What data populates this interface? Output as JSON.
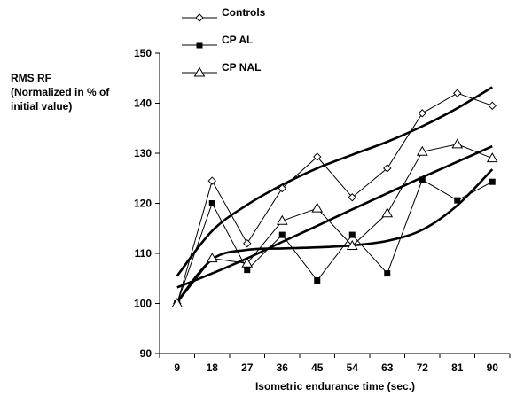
{
  "chart_data": {
    "type": "line",
    "xlabel": "Isometric endurance time (sec.)",
    "ylabel_lines": [
      "RMS RF",
      "(Normalized in % of",
      "initial value)"
    ],
    "categories": [
      "9",
      "18",
      "27",
      "36",
      "45",
      "54",
      "63",
      "72",
      "81",
      "90"
    ],
    "ylim": [
      90,
      150
    ],
    "yticks": [
      90,
      100,
      110,
      120,
      130,
      140,
      150
    ],
    "grid": false,
    "legend_position": "top",
    "series": [
      {
        "name": "Controls",
        "marker": "diamond",
        "values": [
          100,
          124.5,
          112,
          123,
          129.3,
          121.2,
          127,
          138,
          142,
          139.5
        ]
      },
      {
        "name": "CP AL",
        "marker": "square",
        "values": [
          100,
          120,
          106.7,
          113.7,
          104.6,
          113.7,
          106,
          124.7,
          120.6,
          124.3
        ]
      },
      {
        "name": "CP NAL",
        "marker": "triangle",
        "values": [
          100,
          109,
          108,
          116.5,
          119,
          111.5,
          118,
          130.3,
          131.8,
          129
        ]
      }
    ],
    "trendlines": [
      {
        "series": "Controls",
        "values": [
          105.5,
          114.5,
          119.7,
          123.7,
          127,
          129.7,
          132.3,
          135.4,
          139,
          143.2
        ]
      },
      {
        "series": "CP AL",
        "values": [
          100.3,
          108.8,
          110.7,
          111,
          111.2,
          111.6,
          112.5,
          114.7,
          119.6,
          126.8
        ]
      },
      {
        "series": "CP NAL",
        "values": [
          103.2,
          106,
          109,
          112.3,
          115.5,
          118.8,
          122,
          125.2,
          128.3,
          131.4
        ]
      }
    ]
  }
}
